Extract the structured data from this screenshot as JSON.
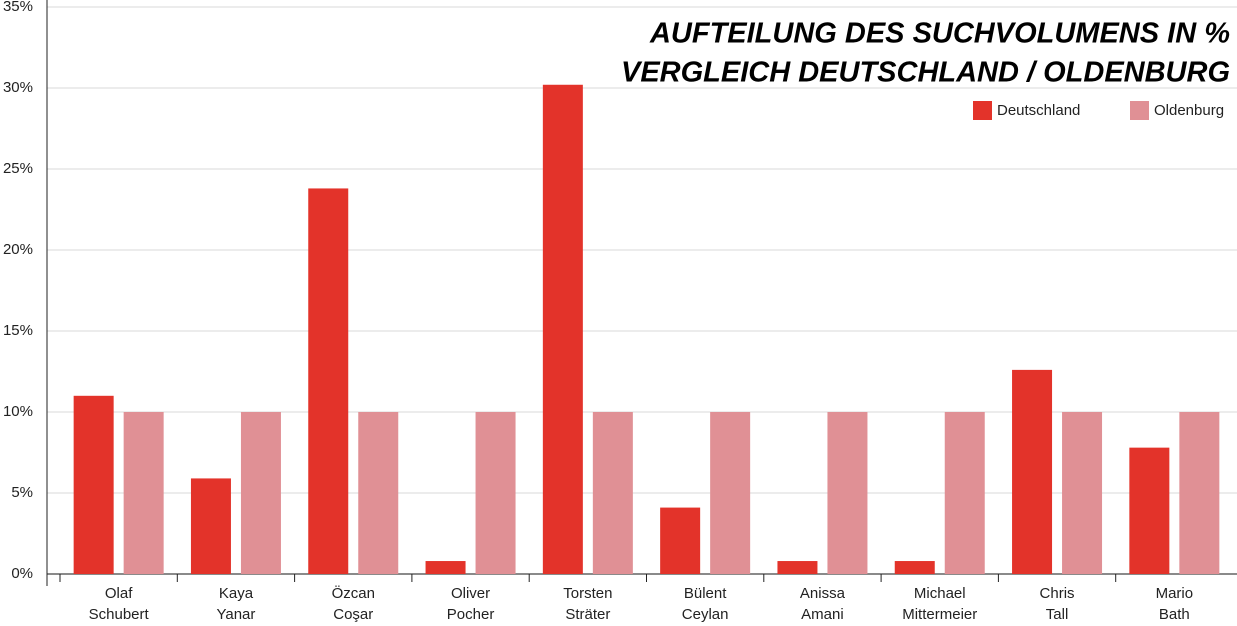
{
  "chart_data": {
    "type": "bar",
    "title": "AUFTEILUNG DES SUCHVOLUMENS IN %",
    "subtitle": "VERGLEICH DEUTSCHLAND / OLDENBURG",
    "categories": [
      [
        "Olaf",
        "Schubert"
      ],
      [
        "Kaya",
        "Yanar"
      ],
      [
        "Özcan",
        "Coşar"
      ],
      [
        "Oliver",
        "Pocher"
      ],
      [
        "Torsten",
        "Sträter"
      ],
      [
        "Bülent",
        "Ceylan"
      ],
      [
        "Anissa",
        "Amani"
      ],
      [
        "Michael",
        "Mittermeier"
      ],
      [
        "Chris",
        "Tall"
      ],
      [
        "Mario",
        "Bath"
      ]
    ],
    "series": [
      {
        "name": "Deutschland",
        "color": "#e3332a",
        "values": [
          11.0,
          5.9,
          23.8,
          0.8,
          30.2,
          4.1,
          0.8,
          0.8,
          12.6,
          7.8
        ]
      },
      {
        "name": "Oldenburg",
        "color": "#e09095",
        "values": [
          10,
          10,
          10,
          10,
          10,
          10,
          10,
          10,
          10,
          10
        ]
      }
    ],
    "ylim": [
      0,
      35
    ],
    "yticks": [
      {
        "value": 0,
        "label": "0%"
      },
      {
        "value": 5,
        "label": "5%"
      },
      {
        "value": 10,
        "label": "10%"
      },
      {
        "value": 15,
        "label": "15%"
      },
      {
        "value": 20,
        "label": "20%"
      },
      {
        "value": 25,
        "label": "25%"
      },
      {
        "value": 30,
        "label": "30%"
      },
      {
        "value": 35,
        "label": "35%"
      }
    ],
    "grid": true,
    "legend": "top-right"
  }
}
